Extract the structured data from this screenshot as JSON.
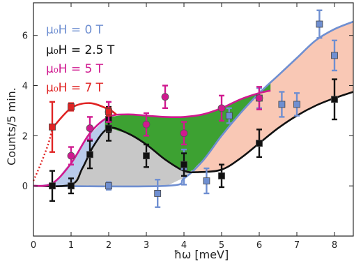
{
  "chart_data": {
    "type": "scatter",
    "xlabel": "ħω [meV]",
    "ylabel": "Counts/5 min.",
    "xlim": [
      0,
      8.5
    ],
    "ylim": [
      -2,
      7.3
    ],
    "x_ticks": [
      0,
      1,
      2,
      3,
      4,
      5,
      6,
      7,
      8
    ],
    "y_ticks": [
      0,
      2,
      4,
      6
    ],
    "grid": false,
    "legend_position": "top-left",
    "series": [
      {
        "name": "μ₀H = 0 T",
        "color": "#6f8fd1",
        "marker": "square",
        "points": [
          {
            "x": 2.0,
            "y": 0.0,
            "err": 0.15
          },
          {
            "x": 3.3,
            "y": -0.3,
            "err": 0.55
          },
          {
            "x": 4.0,
            "y": 0.75,
            "err": 0.7
          },
          {
            "x": 4.6,
            "y": 0.2,
            "err": 0.5
          },
          {
            "x": 5.2,
            "y": 2.8,
            "err": 0.3
          },
          {
            "x": 6.0,
            "y": 3.5,
            "err": 0.4
          },
          {
            "x": 6.6,
            "y": 3.25,
            "err": 0.5
          },
          {
            "x": 7.0,
            "y": 3.25,
            "err": 0.45
          },
          {
            "x": 7.6,
            "y": 6.45,
            "err": 0.55
          },
          {
            "x": 8.0,
            "y": 5.2,
            "err": 0.6
          }
        ],
        "fit": [
          [
            0,
            0
          ],
          [
            3.5,
            0
          ],
          [
            4.0,
            0.3
          ],
          [
            4.5,
            1.0
          ],
          [
            5.0,
            2.0
          ],
          [
            5.5,
            2.9
          ],
          [
            6.0,
            3.7
          ],
          [
            6.5,
            4.4
          ],
          [
            7.0,
            5.1
          ],
          [
            7.5,
            5.8
          ],
          [
            8.0,
            6.25
          ],
          [
            8.5,
            6.55
          ]
        ]
      },
      {
        "name": "μ₀H = 2.5 T",
        "color": "#111111",
        "marker": "square",
        "points": [
          {
            "x": 0.5,
            "y": 0.0,
            "err": 0.6
          },
          {
            "x": 1.0,
            "y": 0.0,
            "err": 0.3
          },
          {
            "x": 1.5,
            "y": 1.25,
            "err": 0.55
          },
          {
            "x": 2.0,
            "y": 2.65,
            "err": 0.5
          },
          {
            "x": 2.0,
            "y": 2.3,
            "err": 0.5
          },
          {
            "x": 3.0,
            "y": 1.2,
            "err": 0.45
          },
          {
            "x": 4.0,
            "y": 0.85,
            "err": 0.45
          },
          {
            "x": 5.0,
            "y": 0.4,
            "err": 0.45
          },
          {
            "x": 6.0,
            "y": 1.7,
            "err": 0.55
          },
          {
            "x": 8.0,
            "y": 3.45,
            "err": 0.8
          }
        ],
        "fit": [
          [
            0,
            0
          ],
          [
            1.0,
            0.05
          ],
          [
            1.3,
            0.7
          ],
          [
            1.6,
            1.6
          ],
          [
            2.0,
            2.3
          ],
          [
            2.5,
            2.1
          ],
          [
            3.0,
            1.65
          ],
          [
            3.5,
            1.05
          ],
          [
            4.0,
            0.6
          ],
          [
            4.4,
            0.55
          ],
          [
            5.0,
            0.65
          ],
          [
            5.5,
            1.1
          ],
          [
            6.0,
            1.7
          ],
          [
            6.5,
            2.3
          ],
          [
            7.0,
            2.8
          ],
          [
            7.5,
            3.2
          ],
          [
            8.0,
            3.5
          ],
          [
            8.5,
            3.75
          ]
        ]
      },
      {
        "name": "μ₀H = 5 T",
        "color": "#d0198f",
        "marker": "circle",
        "points": [
          {
            "x": 1.0,
            "y": 1.2,
            "err": 0.35
          },
          {
            "x": 1.5,
            "y": 2.3,
            "err": 0.45
          },
          {
            "x": 2.0,
            "y": 2.95,
            "err": 0.4
          },
          {
            "x": 3.0,
            "y": 2.45,
            "err": 0.45
          },
          {
            "x": 3.5,
            "y": 3.55,
            "err": 0.45
          },
          {
            "x": 4.0,
            "y": 2.1,
            "err": 0.45
          },
          {
            "x": 5.0,
            "y": 3.1,
            "err": 0.5
          },
          {
            "x": 6.0,
            "y": 3.5,
            "err": 0.45
          }
        ],
        "fit": [
          [
            0,
            0
          ],
          [
            0.5,
            0.1
          ],
          [
            1.0,
            0.9
          ],
          [
            1.5,
            2.1
          ],
          [
            2.0,
            2.75
          ],
          [
            2.5,
            2.85
          ],
          [
            3.0,
            2.8
          ],
          [
            3.5,
            2.75
          ],
          [
            4.0,
            2.75
          ],
          [
            4.5,
            2.85
          ],
          [
            5.0,
            3.1
          ],
          [
            5.5,
            3.45
          ],
          [
            6.0,
            3.7
          ],
          [
            6.3,
            3.8
          ]
        ]
      },
      {
        "name": "μ₀H = 7 T",
        "color": "#e02424",
        "marker": "square",
        "points": [
          {
            "x": 0.5,
            "y": 2.35,
            "err": 1.0
          },
          {
            "x": 1.0,
            "y": 3.15,
            "err": 0.15
          },
          {
            "x": 2.0,
            "y": 2.95,
            "err": 0.15
          }
        ],
        "fit": [
          [
            0.5,
            2.3
          ],
          [
            1.0,
            3.1
          ],
          [
            1.5,
            3.3
          ],
          [
            2.0,
            3.05
          ],
          [
            2.2,
            2.85
          ]
        ],
        "fit_dotted": [
          [
            0,
            0.2
          ],
          [
            0.2,
            0.9
          ],
          [
            0.4,
            1.7
          ],
          [
            0.5,
            2.3
          ]
        ]
      }
    ],
    "fills": [
      {
        "between": [
          "μ₀H = 0 T",
          "μ₀H = 2.5 T"
        ],
        "color": "#b9cbeb"
      },
      {
        "between": [
          "μ₀H = 2.5 T",
          "μ₀H = 5 T"
        ],
        "color": "#3da132"
      },
      {
        "between": [
          "μ₀H = 0 T",
          "μ₀H = 2.5 T"
        ],
        "color": "#c8c8c8"
      },
      {
        "between": [
          "μ₀H = 2.5 T",
          "μ₀H = 0 T"
        ],
        "color": "#f9c8b5"
      }
    ]
  },
  "legend": [
    {
      "text": "μ₀H = 0 T",
      "color": "#6f8fd1"
    },
    {
      "text": "μ₀H = 2.5 T",
      "color": "#111111"
    },
    {
      "text": "μ₀H = 5 T",
      "color": "#d0198f"
    },
    {
      "text": "μ₀H = 7 T",
      "color": "#e02424"
    }
  ]
}
